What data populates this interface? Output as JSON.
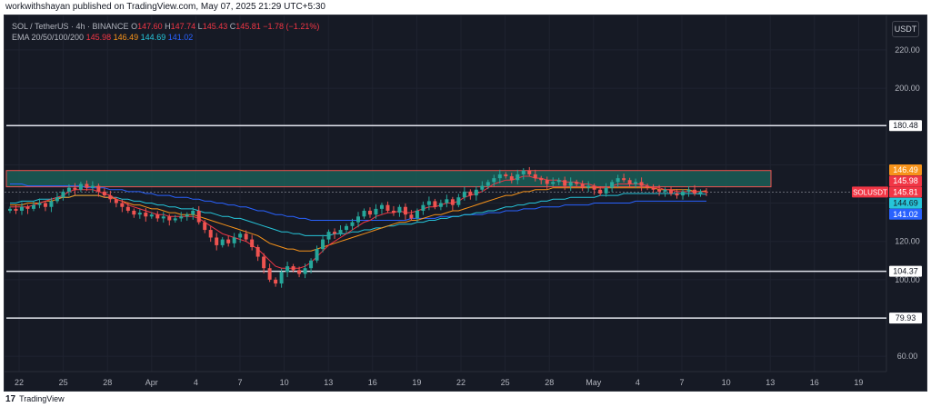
{
  "header": {
    "published_text": "workwithshayan published on TradingView.com, May 07, 2025 21:29 UTC+5:30"
  },
  "legend": {
    "symbol": "SOL / TetherUS · 4h · BINANCE",
    "o_label": "O",
    "o_value": "147.60",
    "h_label": "H",
    "h_value": "147.74",
    "l_label": "L",
    "l_value": "145.43",
    "c_label": "C",
    "c_value": "145.81",
    "change": "−1.78 (−1.21%)",
    "ema_label": "EMA 20/50/100/200",
    "ema20": "145.98",
    "ema50": "146.49",
    "ema100": "144.69",
    "ema200": "141.02"
  },
  "currency_button": "USDT",
  "footer": {
    "brand": "TradingView",
    "logo_glyph": "17"
  },
  "colors": {
    "background": "#161a25",
    "grid": "#1f2330",
    "up": "#26a69a",
    "down": "#ef5350",
    "ema20": "#f23645",
    "ema50": "#f7931a",
    "ema100": "#26c6da",
    "ema200": "#2962ff",
    "zone_fill": "#1b5e57",
    "level_line": "#e0e3eb"
  },
  "chart_data": {
    "type": "candlestick",
    "symbol": "SOLUSDT",
    "timeframe": "4h",
    "y_range": [
      52,
      238
    ],
    "y_ticks": [
      60,
      80,
      100,
      120,
      140,
      160,
      180,
      200,
      220
    ],
    "y_tick_labels": [
      "60.00",
      "",
      "100.00",
      "120.00",
      "",
      "",
      "",
      "200.00",
      "220.00"
    ],
    "x_ticks": [
      "22",
      "25",
      "28",
      "Apr",
      "4",
      "7",
      "10",
      "13",
      "16",
      "19",
      "22",
      "25",
      "28",
      "May",
      "4",
      "7",
      "10",
      "13",
      "16",
      "19"
    ],
    "horizontal_levels": [
      180.48,
      104.37,
      79.93
    ],
    "supply_zone": {
      "low": 148.5,
      "high": 157.0,
      "from": "Mar 19",
      "to": "May 12"
    },
    "price_labels": [
      {
        "label": "",
        "value": "146.49",
        "color": "#f7931a"
      },
      {
        "label": "",
        "value": "145.98",
        "color": "#f23645"
      },
      {
        "label": "SOLUSDT",
        "value": "145.81",
        "color": "#f23645"
      },
      {
        "label": "",
        "value": "144.69",
        "color": "#26c6da"
      },
      {
        "label": "",
        "value": "141.02",
        "color": "#2962ff"
      }
    ],
    "closes": [
      137,
      136,
      138,
      137,
      139,
      140,
      138,
      141,
      143,
      146,
      148,
      147,
      150,
      148,
      149,
      146,
      144,
      142,
      140,
      138,
      136,
      134,
      135,
      133,
      134,
      132,
      133,
      131,
      132,
      133,
      134,
      136,
      130,
      126,
      122,
      118,
      121,
      119,
      122,
      124,
      121,
      117,
      112,
      106,
      100,
      98,
      104,
      107,
      105,
      103,
      106,
      110,
      116,
      121,
      125,
      124,
      126,
      128,
      130,
      133,
      136,
      134,
      137,
      139,
      136,
      135,
      138,
      134,
      132,
      136,
      139,
      141,
      138,
      140,
      142,
      139,
      143,
      146,
      144,
      147,
      149,
      151,
      153,
      155,
      154,
      152,
      155,
      157,
      155,
      153,
      152,
      150,
      151,
      152,
      149,
      151,
      150,
      148,
      149,
      147,
      145,
      148,
      151,
      153,
      152,
      150,
      151,
      149,
      148,
      147,
      146,
      147,
      145,
      144,
      146,
      147,
      145,
      146,
      145.81
    ],
    "ema20": [
      138,
      138,
      138,
      138,
      139,
      140,
      141,
      142,
      143,
      144,
      146,
      147,
      147,
      147,
      147,
      146,
      145,
      144,
      142,
      141,
      139,
      138,
      137,
      136,
      135,
      134,
      134,
      133,
      133,
      133,
      133,
      133,
      132,
      130,
      128,
      126,
      124,
      123,
      122,
      121,
      120,
      118,
      116,
      113,
      110,
      107,
      106,
      106,
      106,
      106,
      107,
      109,
      112,
      115,
      118,
      120,
      122,
      124,
      126,
      128,
      130,
      131,
      133,
      134,
      135,
      135,
      136,
      135,
      135,
      136,
      137,
      138,
      138,
      139,
      140,
      140,
      141,
      143,
      144,
      145,
      146,
      148,
      150,
      151,
      152,
      152,
      153,
      154,
      154,
      153,
      153,
      152,
      152,
      152,
      151,
      151,
      151,
      150,
      150,
      149,
      148,
      148,
      149,
      150,
      150,
      150,
      150,
      150,
      149,
      148,
      148,
      147,
      147,
      146,
      146,
      146,
      146,
      146,
      145.98
    ],
    "ema50": [
      139,
      139,
      139,
      140,
      140,
      140,
      141,
      141,
      142,
      143,
      143,
      144,
      144,
      144,
      144,
      144,
      143,
      143,
      142,
      141,
      140,
      139,
      139,
      138,
      137,
      137,
      136,
      135,
      135,
      134,
      134,
      134,
      133,
      132,
      131,
      130,
      129,
      128,
      127,
      126,
      125,
      124,
      123,
      121,
      119,
      118,
      117,
      116,
      116,
      115,
      115,
      115,
      116,
      117,
      118,
      119,
      120,
      121,
      122,
      123,
      124,
      125,
      126,
      127,
      128,
      129,
      130,
      130,
      131,
      131,
      132,
      133,
      134,
      134,
      135,
      136,
      136,
      137,
      138,
      139,
      140,
      141,
      142,
      143,
      144,
      144,
      145,
      146,
      146,
      147,
      147,
      147,
      148,
      148,
      148,
      148,
      148,
      148,
      148,
      148,
      148,
      148,
      148,
      148,
      148,
      148,
      148,
      148,
      148,
      148,
      147,
      147,
      147,
      147,
      147,
      147,
      146,
      146,
      146.49
    ],
    "ema100": [
      140,
      140,
      141,
      141,
      141,
      142,
      142,
      142,
      143,
      143,
      143,
      144,
      144,
      144,
      144,
      144,
      143,
      143,
      143,
      142,
      142,
      141,
      141,
      140,
      140,
      139,
      139,
      138,
      138,
      137,
      137,
      137,
      136,
      135,
      135,
      134,
      133,
      133,
      132,
      132,
      131,
      130,
      129,
      128,
      127,
      126,
      125,
      125,
      124,
      124,
      123,
      123,
      123,
      123,
      123,
      124,
      124,
      124,
      125,
      125,
      126,
      126,
      127,
      127,
      128,
      128,
      129,
      129,
      129,
      130,
      130,
      131,
      131,
      132,
      132,
      133,
      133,
      134,
      134,
      135,
      135,
      136,
      136,
      137,
      138,
      138,
      139,
      139,
      140,
      140,
      141,
      141,
      142,
      142,
      142,
      143,
      143,
      143,
      143,
      143,
      144,
      144,
      144,
      144,
      145,
      145,
      145,
      145,
      145,
      145,
      145,
      145,
      145,
      145,
      145,
      145,
      145,
      144.7,
      144.69
    ],
    "ema200": [
      150,
      150,
      150,
      149,
      149,
      149,
      149,
      149,
      149,
      149,
      149,
      149,
      149,
      148,
      148,
      148,
      148,
      147,
      147,
      147,
      146,
      146,
      146,
      145,
      145,
      144,
      144,
      144,
      143,
      143,
      143,
      142,
      142,
      141,
      141,
      140,
      140,
      139,
      139,
      138,
      138,
      137,
      136,
      136,
      135,
      134,
      134,
      133,
      133,
      132,
      132,
      131,
      131,
      131,
      131,
      131,
      131,
      131,
      131,
      131,
      131,
      131,
      131,
      131,
      131,
      131,
      131,
      131,
      132,
      132,
      132,
      132,
      132,
      133,
      133,
      133,
      133,
      134,
      134,
      134,
      134,
      135,
      135,
      135,
      136,
      136,
      136,
      137,
      137,
      137,
      138,
      138,
      138,
      138,
      139,
      139,
      139,
      139,
      139,
      140,
      140,
      140,
      140,
      140,
      140,
      140,
      141,
      141,
      141,
      141,
      141,
      141,
      141,
      141,
      141,
      141,
      141,
      141,
      141.02
    ]
  }
}
